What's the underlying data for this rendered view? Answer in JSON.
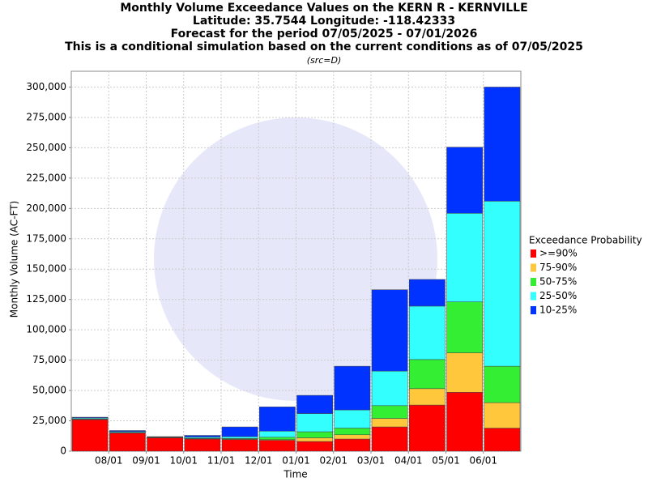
{
  "chart_data": {
    "type": "stacked_bar",
    "title": "Monthly Volume Exceedance Values on the KERN R - KERNVILLE",
    "subtitle_lines": [
      "Latitude: 35.7544 Longitude: -118.42333",
      "Forecast for the period 07/05/2025 - 07/01/2026",
      "This is a conditional simulation based on the current conditions as of 07/05/2025"
    ],
    "note": "(src=D)",
    "x_label": "Time",
    "y_label": "Monthly Volume (AC-FT)",
    "legend_title": "Exceedance Probability",
    "categories": [
      null,
      "08/01",
      "09/01",
      "10/01",
      "11/01",
      "12/01",
      "01/01",
      "02/01",
      "03/01",
      "04/01",
      "05/01",
      "06/01"
    ],
    "series": [
      {
        "name": ">=90%",
        "color": "#ff0000",
        "values": [
          26000,
          15000,
          11000,
          10000,
          9500,
          9000,
          8000,
          10000,
          20000,
          38000,
          48500,
          19000
        ]
      },
      {
        "name": "75-90%",
        "color": "#ffc83c",
        "values": [
          300,
          200,
          200,
          300,
          500,
          500,
          3000,
          3500,
          7000,
          13500,
          32500,
          21000
        ]
      },
      {
        "name": "50-75%",
        "color": "#33ee33",
        "values": [
          300,
          300,
          200,
          400,
          500,
          2000,
          5000,
          5500,
          10500,
          24000,
          42000,
          30000
        ]
      },
      {
        "name": "25-50%",
        "color": "#33ffff",
        "values": [
          800,
          700,
          300,
          1000,
          1500,
          5000,
          15000,
          15000,
          28500,
          44000,
          73000,
          136000
        ]
      },
      {
        "name": "10-25%",
        "color": "#0033ff",
        "values": [
          600,
          800,
          300,
          1300,
          8000,
          20000,
          15000,
          36000,
          67000,
          22000,
          54500,
          94000
        ]
      }
    ],
    "ylim": [
      0,
      313000
    ],
    "yticks": [
      0,
      {
        "value": 25000,
        "label": "25,000"
      },
      {
        "value": 50000,
        "label": "50,000"
      },
      {
        "value": 75000,
        "label": "75,000"
      },
      {
        "value": 100000,
        "label": "100,000"
      },
      {
        "value": 125000,
        "label": "125,000"
      },
      {
        "value": 150000,
        "label": "150,000"
      },
      {
        "value": 175000,
        "label": "175,000"
      },
      {
        "value": 200000,
        "label": "200,000"
      },
      {
        "value": 225000,
        "label": "225,000"
      },
      {
        "value": 250000,
        "label": "250,000"
      },
      {
        "value": 275000,
        "label": "275,000"
      },
      {
        "value": 300000,
        "label": "300,000"
      }
    ],
    "grid": true
  }
}
